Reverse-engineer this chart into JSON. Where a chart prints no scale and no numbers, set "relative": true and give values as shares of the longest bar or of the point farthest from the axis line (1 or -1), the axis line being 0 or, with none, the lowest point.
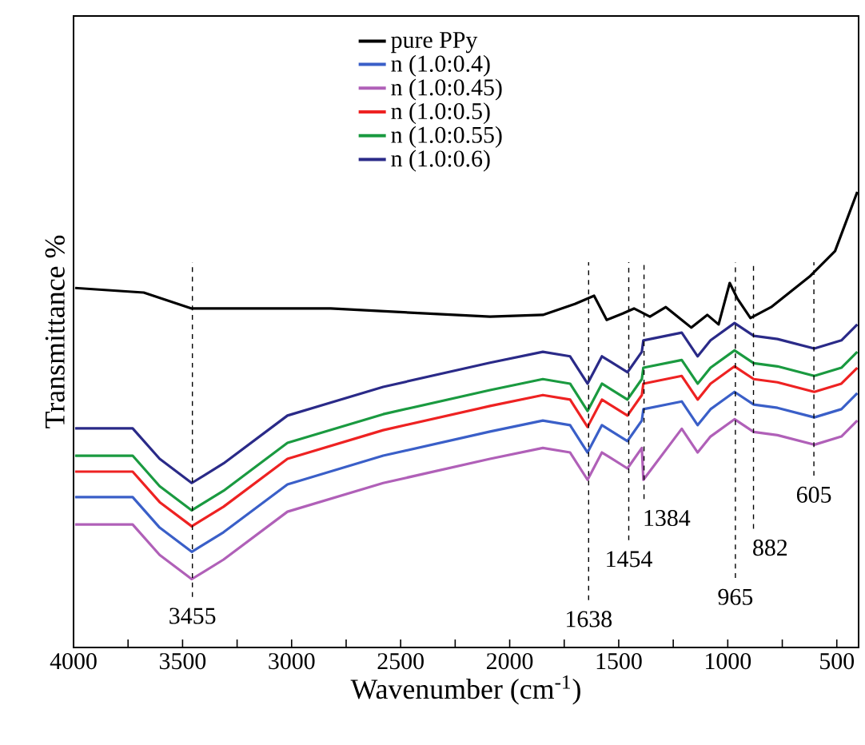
{
  "chart_data": {
    "type": "line",
    "relative": true,
    "xlabel": "Wavenumber (cm$^{-1}$)",
    "ylabel": "Transmittance %",
    "xlim": [
      4000,
      400
    ],
    "xticks": [
      4000,
      {
        "value": 3750,
        "label": null
      },
      3500,
      {
        "value": 3250,
        "label": null
      },
      3000,
      {
        "value": 2750,
        "label": null
      },
      2500,
      {
        "value": 2250,
        "label": null
      },
      2000,
      {
        "value": 1750,
        "label": null
      },
      1500,
      {
        "value": 1250,
        "label": null
      },
      1000,
      {
        "value": 750,
        "label": null
      },
      500
    ],
    "x": [
      3993,
      3729,
      3605,
      3458,
      3312,
      3019,
      2580,
      2090,
      1848,
      1723,
      1643,
      1577,
      1460,
      1394,
      1387,
      1211,
      1138,
      1079,
      969,
      881,
      772,
      603,
      479,
      406
    ],
    "legend": "top",
    "line_style": "solid",
    "marker": "none",
    "series": [
      {
        "name": "pure PPy",
        "color": "#000000",
        "x": [
          3993,
          3678,
          3458,
          2821,
          2090,
          1848,
          1701,
          1613,
          1555,
          1482,
          1430,
          1357,
          1284,
          1211,
          1167,
          1094,
          1042,
          991,
          955,
          896,
          801,
          625,
          508,
          406
        ],
        "values": [
          0.789,
          0.779,
          0.744,
          0.744,
          0.726,
          0.73,
          0.754,
          0.772,
          0.719,
          0.733,
          0.744,
          0.726,
          0.747,
          0.719,
          0.702,
          0.73,
          0.709,
          0.8,
          0.765,
          0.723,
          0.747,
          0.814,
          0.87,
          1
        ]
      },
      {
        "name": "n (1.0:0.4)",
        "color": "#3a5fc8",
        "values": [
          0.33,
          0.33,
          0.263,
          0.21,
          0.253,
          0.358,
          0.421,
          0.474,
          0.498,
          0.488,
          0.428,
          0.488,
          0.453,
          0.498,
          0.523,
          0.54,
          0.488,
          0.523,
          0.561,
          0.533,
          0.526,
          0.505,
          0.523,
          0.558
        ]
      },
      {
        "name": "n (1.0:0.45)",
        "color": "#b060b8",
        "values": [
          0.27,
          0.27,
          0.203,
          0.15,
          0.193,
          0.298,
          0.361,
          0.414,
          0.438,
          0.428,
          0.368,
          0.428,
          0.393,
          0.438,
          0.368,
          0.48,
          0.428,
          0.463,
          0.501,
          0.473,
          0.466,
          0.445,
          0.463,
          0.498
        ]
      },
      {
        "name": "n (1.0:0.5)",
        "color": "#ee2222",
        "values": [
          0.386,
          0.386,
          0.319,
          0.266,
          0.309,
          0.414,
          0.477,
          0.53,
          0.554,
          0.544,
          0.484,
          0.544,
          0.509,
          0.554,
          0.579,
          0.596,
          0.544,
          0.579,
          0.617,
          0.589,
          0.582,
          0.561,
          0.579,
          0.614
        ]
      },
      {
        "name": "n (1.0:0.55)",
        "color": "#1a9a40",
        "values": [
          0.421,
          0.421,
          0.354,
          0.301,
          0.344,
          0.449,
          0.512,
          0.565,
          0.589,
          0.579,
          0.519,
          0.579,
          0.544,
          0.589,
          0.614,
          0.631,
          0.579,
          0.614,
          0.652,
          0.624,
          0.617,
          0.596,
          0.614,
          0.649
        ]
      },
      {
        "name": "n (1.0:0.6)",
        "color": "#2a2a88",
        "values": [
          0.481,
          0.481,
          0.414,
          0.361,
          0.404,
          0.509,
          0.572,
          0.625,
          0.649,
          0.639,
          0.579,
          0.639,
          0.604,
          0.649,
          0.674,
          0.691,
          0.639,
          0.674,
          0.712,
          0.684,
          0.677,
          0.656,
          0.674,
          0.709
        ]
      }
    ],
    "ref_lines": [
      {
        "axis": "x",
        "value": 3455,
        "label": "3455",
        "color": "#000000",
        "line_style": "dashed"
      },
      {
        "axis": "x",
        "value": 1638,
        "label": "1638",
        "color": "#000000",
        "line_style": "dashed"
      },
      {
        "axis": "x",
        "value": 1454,
        "label": "1454",
        "color": "#000000",
        "line_style": "dashed"
      },
      {
        "axis": "x",
        "value": 1384,
        "label": "1384",
        "color": "#000000",
        "line_style": "dashed"
      },
      {
        "axis": "x",
        "value": 965,
        "label": "965",
        "color": "#000000",
        "line_style": "dashed"
      },
      {
        "axis": "x",
        "value": 882,
        "label": "882",
        "color": "#000000",
        "line_style": "dashed"
      },
      {
        "axis": "x",
        "value": 605,
        "label": "605",
        "color": "#000000",
        "line_style": "dashed"
      }
    ]
  }
}
